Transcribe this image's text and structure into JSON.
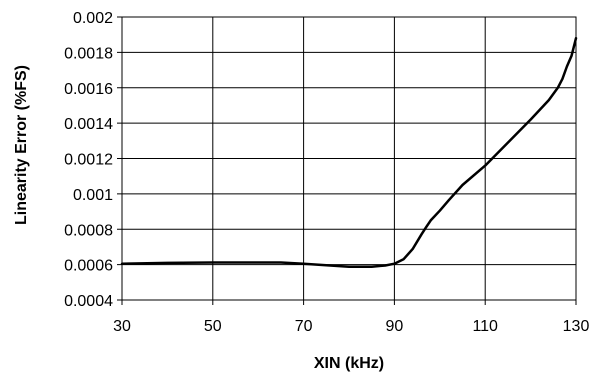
{
  "chart_data": {
    "type": "line",
    "title": "",
    "xlabel": "XIN (kHz)",
    "ylabel": "Linearity Error (%FS)",
    "xlim": [
      30,
      130
    ],
    "ylim": [
      0.0004,
      0.002
    ],
    "x_ticks": [
      "30",
      "50",
      "70",
      "90",
      "110",
      "130"
    ],
    "y_ticks": [
      "0.0004",
      "0.0006",
      "0.0008",
      "0.001",
      "0.0012",
      "0.0014",
      "0.0016",
      "0.0018",
      "0.002"
    ],
    "grid": true,
    "legend": "none",
    "series": [
      {
        "color": "#000000",
        "x": [
          30,
          40,
          50,
          60,
          65,
          70,
          75,
          80,
          85,
          88,
          90,
          92,
          94,
          96,
          97,
          98,
          100,
          102,
          105,
          110,
          115,
          120,
          124,
          126,
          127,
          128,
          129,
          130
        ],
        "y": [
          0.000605,
          0.00061,
          0.000612,
          0.000612,
          0.000612,
          0.000605,
          0.000596,
          0.000588,
          0.000588,
          0.000595,
          0.000605,
          0.00063,
          0.000688,
          0.000772,
          0.000812,
          0.00085,
          0.000905,
          0.000965,
          0.00105,
          0.00116,
          0.00129,
          0.00142,
          0.00153,
          0.0016,
          0.00165,
          0.00172,
          0.00178,
          0.00188
        ]
      }
    ]
  }
}
